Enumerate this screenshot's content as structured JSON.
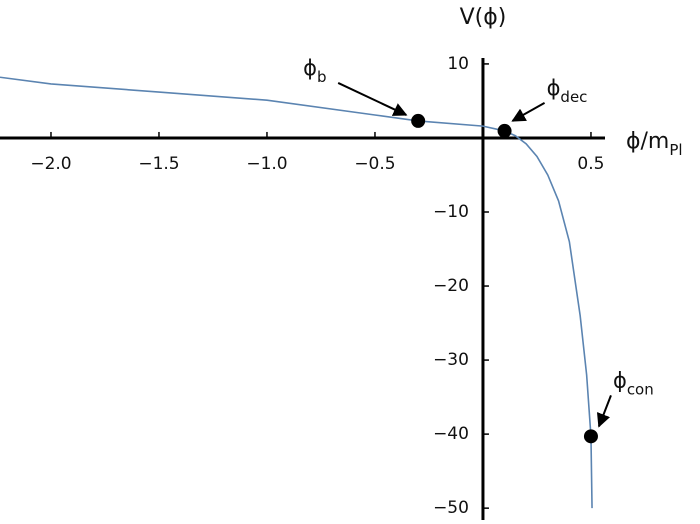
{
  "chart_data": {
    "type": "line",
    "y_label": "V(ϕ)",
    "x_label": {
      "main": "ϕ/m",
      "sub": "Pl"
    },
    "xlim": [
      -2.236,
      0.565
    ],
    "ylim": [
      -51.6,
      10.8
    ],
    "xticks": [
      {
        "value": -2,
        "label": "−2.0"
      },
      {
        "value": -1.5,
        "label": "−1.5"
      },
      {
        "value": -1,
        "label": "−1.0"
      },
      {
        "value": -0.5,
        "label": "−0.5"
      },
      0.5
    ],
    "yticks": [
      10,
      {
        "value": -10,
        "label": "−10"
      },
      {
        "value": -20,
        "label": "−20"
      },
      {
        "value": -30,
        "label": "−30"
      },
      {
        "value": -40,
        "label": "−40"
      },
      {
        "value": -50,
        "label": "−50"
      }
    ],
    "x": [
      -2.236,
      -2.0,
      -1.5,
      -1.0,
      -0.5,
      -0.3,
      0,
      0.1,
      0.15,
      0.2,
      0.25,
      0.3,
      0.35,
      0.4,
      0.45,
      0.48,
      0.5,
      0.505
    ],
    "series": [
      {
        "color": "#5b84b1",
        "values": [
          8.2,
          7.3,
          6.2,
          5.1,
          3.1,
          2.3,
          1.6,
          0.95,
          0.3,
          -0.8,
          -2.5,
          -5,
          -8.5,
          -14,
          -24,
          -32,
          -40.3,
          -50
        ]
      }
    ],
    "points": [
      {
        "label": {
          "main": "ϕ",
          "sub": "b"
        },
        "x": -0.3,
        "y": 2.3
      },
      {
        "label": {
          "main": "ϕ",
          "sub": "dec"
        },
        "x": 0.1,
        "y": 0.95
      },
      {
        "label": {
          "main": "ϕ",
          "sub": "con"
        },
        "x": 0.5,
        "y": -40.3
      }
    ]
  }
}
